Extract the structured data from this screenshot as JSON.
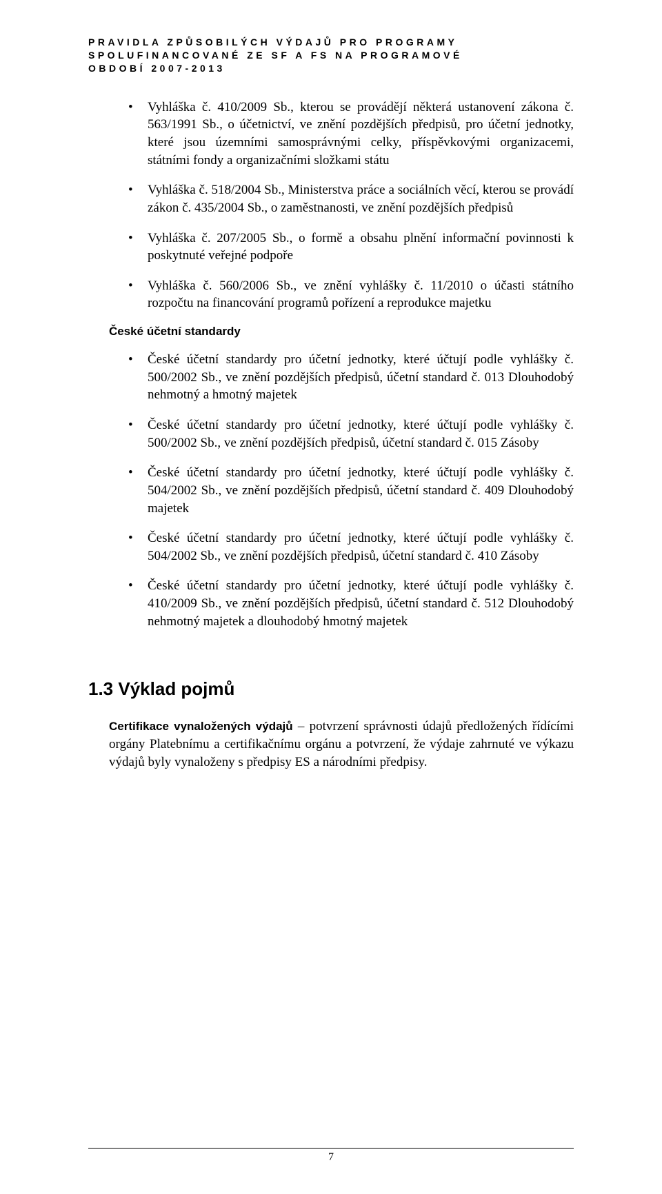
{
  "header": {
    "line1": "PRAVIDLA ZPŮSOBILÝCH VÝDAJŮ PRO PROGRAMY",
    "line2": "SPOLUFINANCOVANÉ ZE SF A FS NA PROGRAMOVÉ",
    "line3": "OBDOBÍ 2007-2013"
  },
  "bullets_top": [
    "Vyhláška č. 410/2009 Sb., kterou se provádějí některá ustanovení zákona č. 563/1991 Sb., o účetnictví, ve znění pozdějších předpisů, pro účetní jednotky, které jsou územními samosprávnými celky, příspěvkovými organizacemi, státními fondy a organizačními složkami státu",
    "Vyhláška č. 518/2004 Sb., Ministerstva práce a sociálních věcí, kterou se provádí zákon č. 435/2004 Sb., o zaměstnanosti, ve znění pozdějších předpisů",
    "Vyhláška č. 207/2005 Sb., o formě a obsahu plnění informační povinnosti k poskytnuté veřejné podpoře",
    "Vyhláška č. 560/2006 Sb., ve znění vyhlášky č. 11/2010 o účasti státního rozpočtu na financování programů pořízení a reprodukce majetku"
  ],
  "subheading": "České účetní standardy",
  "bullets_bottom": [
    "České účetní standardy pro účetní jednotky, které účtují podle vyhlášky č. 500/2002 Sb., ve znění pozdějších předpisů, účetní standard č. 013 Dlouhodobý nehmotný a hmotný majetek",
    "České účetní standardy pro účetní jednotky, které účtují podle vyhlášky č. 500/2002 Sb., ve znění pozdějších předpisů, účetní standard č. 015 Zásoby",
    "České účetní standardy pro účetní jednotky, které účtují podle vyhlášky č. 504/2002 Sb., ve znění pozdějších předpisů, účetní standard č. 409 Dlouhodobý majetek",
    "České účetní standardy pro účetní jednotky, které účtují podle vyhlášky č. 504/2002 Sb., ve znění pozdějších předpisů, účetní standard č. 410 Zásoby",
    "České účetní standardy pro účetní jednotky, které účtují podle vyhlášky č. 410/2009 Sb., ve znění pozdějších předpisů, účetní standard č. 512 Dlouhodobý nehmotný majetek a dlouhodobý hmotný majetek"
  ],
  "h2": "1.3 Výklad pojmů",
  "para_lead": "Certifikace vynaložených výdajů",
  "para_rest": " – potvrzení správnosti údajů předložených řídícími orgány Platebnímu a certifikačnímu orgánu a potvrzení, že výdaje zahrnuté ve výkazu výdajů byly vynaloženy s předpisy ES a národními předpisy.",
  "page_number": "7"
}
